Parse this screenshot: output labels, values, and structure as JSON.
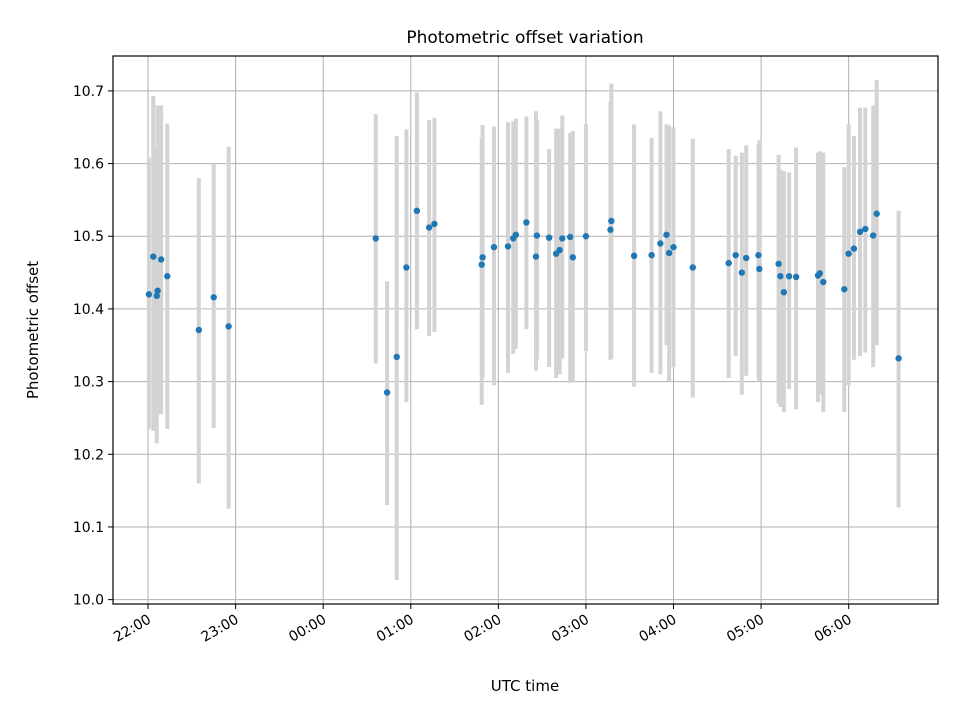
{
  "chart_data": {
    "type": "scatter",
    "title": "Photometric offset variation",
    "xlabel": "UTC time",
    "ylabel": "Photometric offset",
    "grid": true,
    "x_unit": "hours since 22:00 UTC",
    "xlim": [
      -0.4,
      9.02
    ],
    "ylim": [
      9.994,
      10.748
    ],
    "y_ticks": [
      10.0,
      10.1,
      10.2,
      10.3,
      10.4,
      10.5,
      10.6,
      10.7
    ],
    "y_tick_labels": [
      "10.0",
      "10.1",
      "10.2",
      "10.3",
      "10.4",
      "10.5",
      "10.6",
      "10.7"
    ],
    "x_ticks": [
      0,
      1,
      2,
      3,
      4,
      5,
      6,
      7,
      8
    ],
    "x_tick_labels": [
      "22:00",
      "23:00",
      "00:00",
      "01:00",
      "02:00",
      "03:00",
      "04:00",
      "05:00",
      "06:00"
    ],
    "colors": {
      "point": "#1f77b4",
      "errorbar": "#d3d3d3",
      "grid": "#b0b0b0",
      "axis": "#000000"
    },
    "series": [
      {
        "name": "offset",
        "x": [
          0.01,
          0.06,
          0.1,
          0.11,
          0.15,
          0.22,
          0.58,
          0.75,
          0.92,
          2.6,
          2.73,
          2.84,
          2.95,
          3.07,
          3.21,
          3.27,
          3.81,
          3.82,
          3.95,
          4.11,
          4.17,
          4.2,
          4.32,
          4.43,
          4.44,
          4.58,
          4.66,
          4.7,
          4.73,
          4.82,
          4.85,
          5.0,
          5.28,
          5.29,
          5.55,
          5.75,
          5.85,
          5.92,
          5.95,
          6.0,
          6.22,
          6.63,
          6.71,
          6.78,
          6.83,
          6.97,
          6.98,
          7.2,
          7.22,
          7.26,
          7.32,
          7.4,
          7.65,
          7.67,
          7.71,
          7.95,
          8.0,
          8.06,
          8.13,
          8.19,
          8.28,
          8.32,
          8.57
        ],
        "y": [
          10.42,
          10.472,
          10.418,
          10.425,
          10.468,
          10.445,
          10.371,
          10.416,
          10.376,
          10.497,
          10.285,
          10.334,
          10.457,
          10.535,
          10.512,
          10.517,
          10.461,
          10.471,
          10.485,
          10.486,
          10.497,
          10.502,
          10.519,
          10.472,
          10.501,
          10.498,
          10.476,
          10.481,
          10.497,
          10.499,
          10.471,
          10.5,
          10.509,
          10.521,
          10.473,
          10.474,
          10.49,
          10.502,
          10.477,
          10.485,
          10.457,
          10.463,
          10.474,
          10.45,
          10.47,
          10.474,
          10.455,
          10.462,
          10.445,
          10.423,
          10.445,
          10.444,
          10.446,
          10.449,
          10.437,
          10.427,
          10.476,
          10.483,
          10.506,
          10.51,
          10.501,
          10.531,
          10.332
        ],
        "err_low": [
          10.235,
          10.232,
          10.215,
          10.255,
          10.255,
          10.235,
          10.16,
          10.236,
          10.125,
          10.325,
          10.13,
          10.027,
          10.272,
          10.372,
          10.363,
          10.368,
          10.268,
          10.305,
          10.295,
          10.312,
          10.338,
          10.345,
          10.372,
          10.315,
          10.33,
          10.32,
          10.305,
          10.31,
          10.332,
          10.298,
          10.3,
          10.342,
          10.33,
          10.332,
          10.293,
          10.312,
          10.31,
          10.35,
          10.3,
          10.32,
          10.278,
          10.305,
          10.335,
          10.282,
          10.308,
          10.305,
          10.3,
          10.27,
          10.265,
          10.258,
          10.29,
          10.262,
          10.272,
          10.282,
          10.258,
          10.258,
          10.295,
          10.33,
          10.335,
          10.34,
          10.32,
          10.35,
          10.127
        ],
        "err_high": [
          10.608,
          10.693,
          10.62,
          10.68,
          10.68,
          10.655,
          10.58,
          10.6,
          10.623,
          10.668,
          10.438,
          10.638,
          10.647,
          10.698,
          10.66,
          10.663,
          10.635,
          10.653,
          10.651,
          10.657,
          10.658,
          10.662,
          10.665,
          10.672,
          10.66,
          10.62,
          10.648,
          10.648,
          10.666,
          10.642,
          10.645,
          10.654,
          10.685,
          10.71,
          10.654,
          10.635,
          10.672,
          10.654,
          10.652,
          10.65,
          10.634,
          10.62,
          10.611,
          10.615,
          10.625,
          10.626,
          10.632,
          10.612,
          10.592,
          10.59,
          10.588,
          10.622,
          10.615,
          10.617,
          10.615,
          10.595,
          10.654,
          10.638,
          10.677,
          10.677,
          10.68,
          10.715,
          10.535
        ]
      }
    ]
  }
}
